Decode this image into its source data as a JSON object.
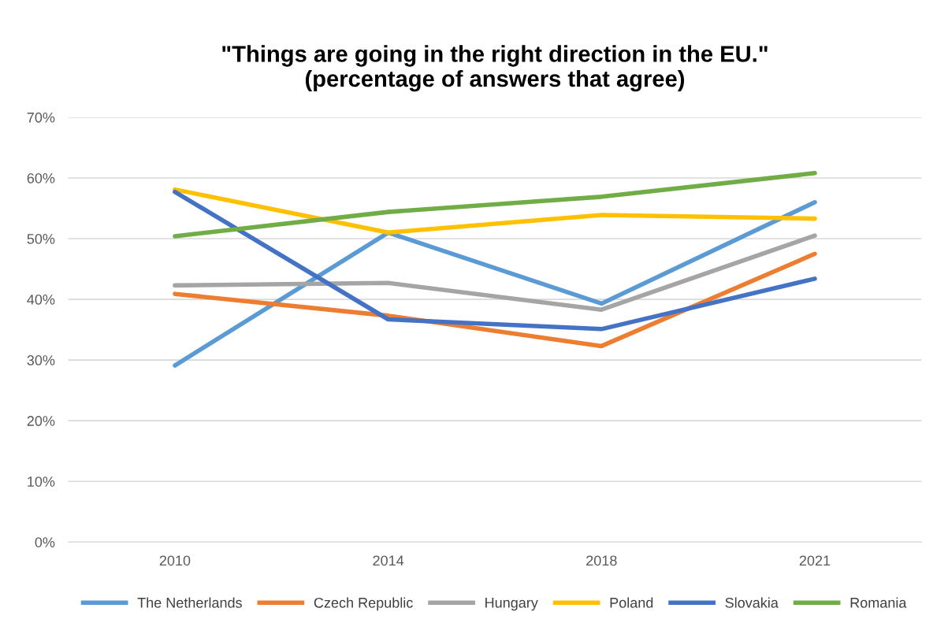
{
  "chart_data": {
    "type": "line",
    "title": "\"Things are going in the right direction in the EU.\"\n(percentage of answers that agree)",
    "categories": [
      "2010",
      "2014",
      "2018",
      "2021"
    ],
    "series": [
      {
        "name": "The Netherlands",
        "color": "#5b9bd5",
        "values": [
          29.1,
          51.0,
          39.3,
          56.0
        ]
      },
      {
        "name": "Czech Republic",
        "color": "#ed7d31",
        "values": [
          40.9,
          37.3,
          32.3,
          47.5
        ]
      },
      {
        "name": "Hungary",
        "color": "#a5a5a5",
        "values": [
          42.3,
          42.7,
          38.3,
          50.5
        ]
      },
      {
        "name": "Poland",
        "color": "#ffc000",
        "values": [
          58.1,
          51.0,
          53.9,
          53.3
        ]
      },
      {
        "name": "Slovakia",
        "color": "#4472c4",
        "values": [
          57.7,
          36.7,
          35.1,
          43.4
        ]
      },
      {
        "name": "Romania",
        "color": "#70ad47",
        "values": [
          50.4,
          54.4,
          56.9,
          60.8
        ]
      }
    ],
    "ylim": [
      0,
      70
    ],
    "yticks": [
      {
        "value": 0,
        "label": "0%"
      },
      {
        "value": 10,
        "label": "10%"
      },
      {
        "value": 20,
        "label": "20%"
      },
      {
        "value": 30,
        "label": "30%"
      },
      {
        "value": 40,
        "label": "40%"
      },
      {
        "value": 50,
        "label": "50%"
      },
      {
        "value": 60,
        "label": "60%"
      },
      {
        "value": 70,
        "label": "70%"
      }
    ],
    "grid": "y",
    "legend": "bottom",
    "marker": "none",
    "line_style": "solid"
  }
}
